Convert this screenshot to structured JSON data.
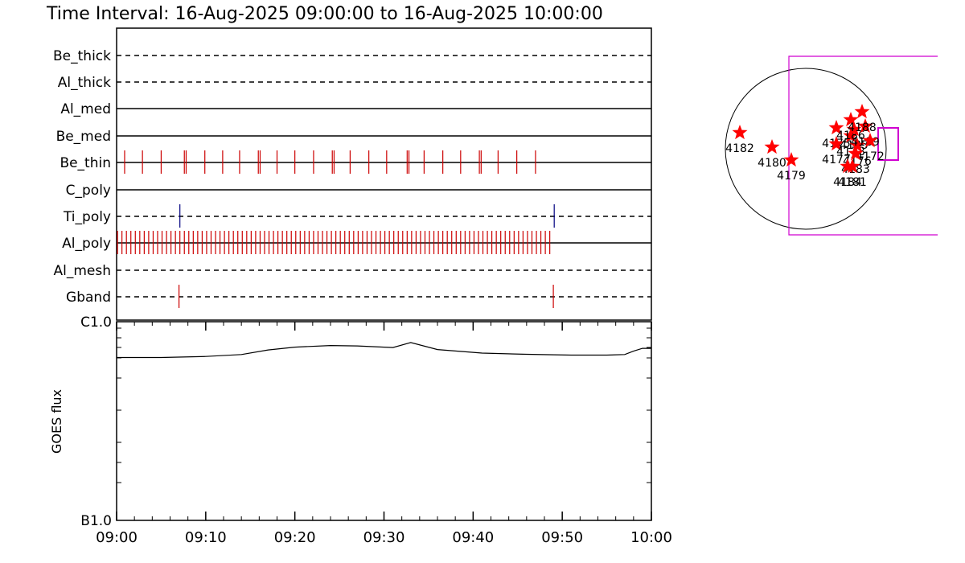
{
  "title": "Time Interval: 16-Aug-2025 09:00:00 to 16-Aug-2025 10:00:00",
  "chart_data": [
    {
      "type": "event-timeline",
      "x_ticks": [
        "09:00",
        "09:10",
        "09:20",
        "09:30",
        "09:40",
        "09:50",
        "10:00"
      ],
      "xlim_minutes": [
        0,
        60
      ],
      "rows": [
        {
          "label": "Be_thick",
          "style": "dashed",
          "events": [],
          "color": "#cc0000"
        },
        {
          "label": "Al_thick",
          "style": "dashed",
          "events": [],
          "color": "#cc0000"
        },
        {
          "label": "Al_med",
          "style": "solid",
          "events": [],
          "color": "#cc0000"
        },
        {
          "label": "Be_med",
          "style": "solid",
          "events": [],
          "color": "#cc0000"
        },
        {
          "label": "Be_thin",
          "style": "solid",
          "color": "#cc0000",
          "events": [
            0.9,
            2.9,
            5.0,
            7.6,
            7.8,
            9.9,
            11.9,
            13.8,
            15.9,
            16.1,
            18.0,
            20.0,
            22.1,
            24.2,
            24.4,
            26.2,
            28.3,
            30.3,
            32.6,
            32.8,
            34.5,
            36.6,
            38.6,
            40.7,
            40.9,
            42.8,
            44.9,
            47.0
          ]
        },
        {
          "label": "C_poly",
          "style": "solid",
          "events": [],
          "color": "#cc0000"
        },
        {
          "label": "Ti_poly",
          "style": "dashed",
          "color": "#000080",
          "events": [
            7.1,
            49.1
          ]
        },
        {
          "label": "Al_poly",
          "style": "solid",
          "color": "#cc0000",
          "events_note": "dense regular sequence",
          "event_range": [
            0.1,
            48.6
          ],
          "event_step": 0.5
        },
        {
          "label": "Al_mesh",
          "style": "dashed",
          "events": [],
          "color": "#cc0000"
        },
        {
          "label": "Gband",
          "style": "dashed",
          "color": "#cc0000",
          "events": [
            7.0,
            49.0
          ]
        }
      ]
    },
    {
      "type": "line",
      "ylabel": "GOES flux",
      "y_ticks": [
        "C1.0",
        "B1.0"
      ],
      "yscale": "log",
      "ylim": [
        "B1.0",
        "C1.0"
      ],
      "x_ticks": [
        "09:00",
        "09:10",
        "09:20",
        "09:30",
        "09:40",
        "09:50",
        "10:00"
      ],
      "series": [
        {
          "x_minutes": [
            0,
            5,
            10,
            14,
            17,
            20,
            24,
            27,
            31,
            33,
            36,
            41,
            46,
            51,
            55,
            57,
            58,
            59,
            60
          ],
          "y_flux_log_frac": [
            0.82,
            0.82,
            0.825,
            0.835,
            0.858,
            0.872,
            0.88,
            0.878,
            0.87,
            0.895,
            0.86,
            0.842,
            0.836,
            0.832,
            0.832,
            0.835,
            0.852,
            0.866,
            0.866
          ]
        }
      ]
    },
    {
      "type": "scatter",
      "title": "",
      "points": [
        {
          "label": "4182",
          "x": -0.82,
          "y": 0.2
        },
        {
          "label": "4180",
          "x": -0.42,
          "y": 0.02
        },
        {
          "label": "4179",
          "x": -0.18,
          "y": -0.14
        },
        {
          "label": "4175",
          "x": 0.38,
          "y": 0.26
        },
        {
          "label": "4177",
          "x": 0.38,
          "y": 0.06
        },
        {
          "label": "4178",
          "x": 0.56,
          "y": 0.16
        },
        {
          "label": "4186",
          "x": 0.56,
          "y": 0.36
        },
        {
          "label": "4185",
          "x": 0.6,
          "y": 0.24
        },
        {
          "label": "4176",
          "x": 0.64,
          "y": 0.04
        },
        {
          "label": "4189",
          "x": 0.74,
          "y": 0.28
        },
        {
          "label": "4188",
          "x": 0.7,
          "y": 0.46
        },
        {
          "label": "4172",
          "x": 0.8,
          "y": 0.1
        },
        {
          "label": "4183",
          "x": 0.62,
          "y": -0.06
        },
        {
          "label": "4181",
          "x": 0.58,
          "y": -0.22
        },
        {
          "label": "4184",
          "x": 0.52,
          "y": -0.22
        }
      ],
      "colors": {
        "marker": "#ff0000",
        "fov": "#d000d0",
        "limb": "#000000"
      }
    }
  ]
}
